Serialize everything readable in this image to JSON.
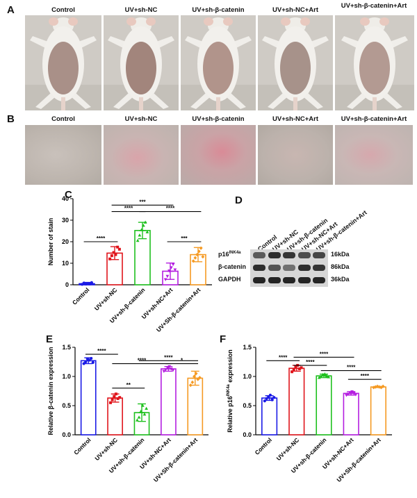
{
  "panels": {
    "A": {
      "letter": "A"
    },
    "B": {
      "letter": "B"
    },
    "C": {
      "letter": "C"
    },
    "D": {
      "letter": "D"
    },
    "E": {
      "letter": "E"
    },
    "F": {
      "letter": "F"
    }
  },
  "groups_photo": [
    "Control",
    "UV+sh-NC",
    "UV+sh-β-catenin",
    "UV+sh-NC+Art",
    "UV+sh-β-catenin+Art"
  ],
  "western": {
    "columns": [
      "Control",
      "UV+sh-NC",
      "UV+sh-β-catenin",
      "UV+sh-NC+Art",
      "UV+sh-β-catenin+Art"
    ],
    "rows": [
      {
        "label": "p16",
        "sup": "INK4a",
        "size": "16kDa"
      },
      {
        "label": "β-catenin",
        "sup": "",
        "size": "86kDa"
      },
      {
        "label": "GAPDH",
        "sup": "",
        "size": "36kDa"
      }
    ]
  },
  "chart_data": [
    {
      "id": "C",
      "type": "bar",
      "categories": [
        "Control",
        "UV+sh-NC",
        "UV+sh-β-catenin",
        "UV+sh-NC+Art",
        "UV+Sh-β-catenin+Art"
      ],
      "values": [
        0.5,
        14.7,
        25.2,
        6.3,
        14.0
      ],
      "errors": [
        0.6,
        3.0,
        3.8,
        3.8,
        3.3
      ],
      "ylabel": "Number of stain",
      "ylim": [
        0,
        40
      ],
      "yticks": [
        0,
        10,
        20,
        30,
        40
      ],
      "colors": [
        "#1a1ae6",
        "#e0141b",
        "#1ec01e",
        "#b41ee0",
        "#f59a23"
      ],
      "points": [
        [
          0.2,
          0.8,
          0.3,
          0.6,
          0.4,
          1.0
        ],
        [
          12.0,
          13.5,
          15.0,
          14.0,
          17.5,
          16.5
        ],
        [
          20.5,
          23.0,
          25.5,
          27.5,
          29.0,
          24.5
        ],
        [
          2.5,
          4.0,
          6.5,
          8.0,
          9.5,
          7.0
        ],
        [
          11.0,
          12.5,
          14.0,
          15.5,
          17.0,
          13.0
        ]
      ],
      "sig": [
        {
          "from": 0,
          "to": 1,
          "label": "****",
          "y": 20
        },
        {
          "from": 1,
          "to": 2,
          "label": "****",
          "y": 34
        },
        {
          "from": 1,
          "to": 3,
          "label": "***",
          "y": 37
        },
        {
          "from": 2,
          "to": 4,
          "label": "****",
          "y": 34
        },
        {
          "from": 3,
          "to": 4,
          "label": "***",
          "y": 20
        }
      ]
    },
    {
      "id": "E",
      "type": "bar",
      "categories": [
        "Control",
        "UV+sh-NC",
        "UV+sh-β-catenin",
        "UV+sh-NC+Art",
        "UV+Sh-β-catenin+Art"
      ],
      "values": [
        1.27,
        0.63,
        0.38,
        1.13,
        0.97
      ],
      "errors": [
        0.05,
        0.07,
        0.15,
        0.04,
        0.12
      ],
      "ylabel": "Relative β-catenin expression",
      "ylim": [
        0,
        1.5
      ],
      "yticks": [
        0.0,
        0.5,
        1.0,
        1.5
      ],
      "colors": [
        "#1a1ae6",
        "#e0141b",
        "#1ec01e",
        "#b41ee0",
        "#f59a23"
      ],
      "points": [
        [
          1.22,
          1.25,
          1.3,
          1.28,
          1.31,
          1.24
        ],
        [
          0.55,
          0.6,
          0.66,
          0.7,
          0.62,
          0.64
        ],
        [
          0.25,
          0.3,
          0.4,
          0.5,
          0.35,
          0.45
        ],
        [
          1.09,
          1.12,
          1.15,
          1.17,
          1.13,
          1.11
        ],
        [
          0.85,
          0.9,
          1.0,
          1.05,
          0.95,
          0.98
        ]
      ],
      "sig": [
        {
          "from": 0,
          "to": 1,
          "label": "****",
          "y": 1.38
        },
        {
          "from": 1,
          "to": 2,
          "label": "**",
          "y": 0.8
        },
        {
          "from": 1,
          "to": 3,
          "label": "****",
          "y": 1.22
        },
        {
          "from": 2,
          "to": 4,
          "label": "****",
          "y": 1.27
        },
        {
          "from": 3,
          "to": 4,
          "label": "*",
          "y": 1.22
        }
      ]
    },
    {
      "id": "F",
      "type": "bar",
      "categories": [
        "Control",
        "UV+sh-NC",
        "UV+sh-β-catenin",
        "UV+sh-NC+Art",
        "UV+Sh-β-catenin+Art"
      ],
      "values": [
        0.63,
        1.14,
        1.01,
        0.71,
        0.82
      ],
      "errors": [
        0.04,
        0.05,
        0.03,
        0.03,
        0.01
      ],
      "ylabel": "Relative p16",
      "ylabel_sup": "INK4a",
      "ylabel_tail": " expression",
      "ylim": [
        0,
        1.5
      ],
      "yticks": [
        0.0,
        0.5,
        1.0,
        1.5
      ],
      "colors": [
        "#1a1ae6",
        "#e0141b",
        "#1ec01e",
        "#b41ee0",
        "#f59a23"
      ],
      "points": [
        [
          0.58,
          0.62,
          0.65,
          0.68,
          0.6,
          0.64
        ],
        [
          1.08,
          1.12,
          1.16,
          1.19,
          1.13,
          1.15
        ],
        [
          0.98,
          1.0,
          1.03,
          1.04,
          1.01,
          0.99
        ],
        [
          0.68,
          0.7,
          0.72,
          0.74,
          0.71,
          0.69
        ],
        [
          0.81,
          0.82,
          0.83,
          0.82,
          0.81,
          0.83
        ]
      ],
      "sig": [
        {
          "from": 0,
          "to": 1,
          "label": "****",
          "y": 1.27
        },
        {
          "from": 1,
          "to": 2,
          "label": "****",
          "y": 1.19
        },
        {
          "from": 1,
          "to": 3,
          "label": "****",
          "y": 1.33
        },
        {
          "from": 2,
          "to": 4,
          "label": "****",
          "y": 1.1
        },
        {
          "from": 3,
          "to": 4,
          "label": "****",
          "y": 0.95
        }
      ]
    }
  ]
}
